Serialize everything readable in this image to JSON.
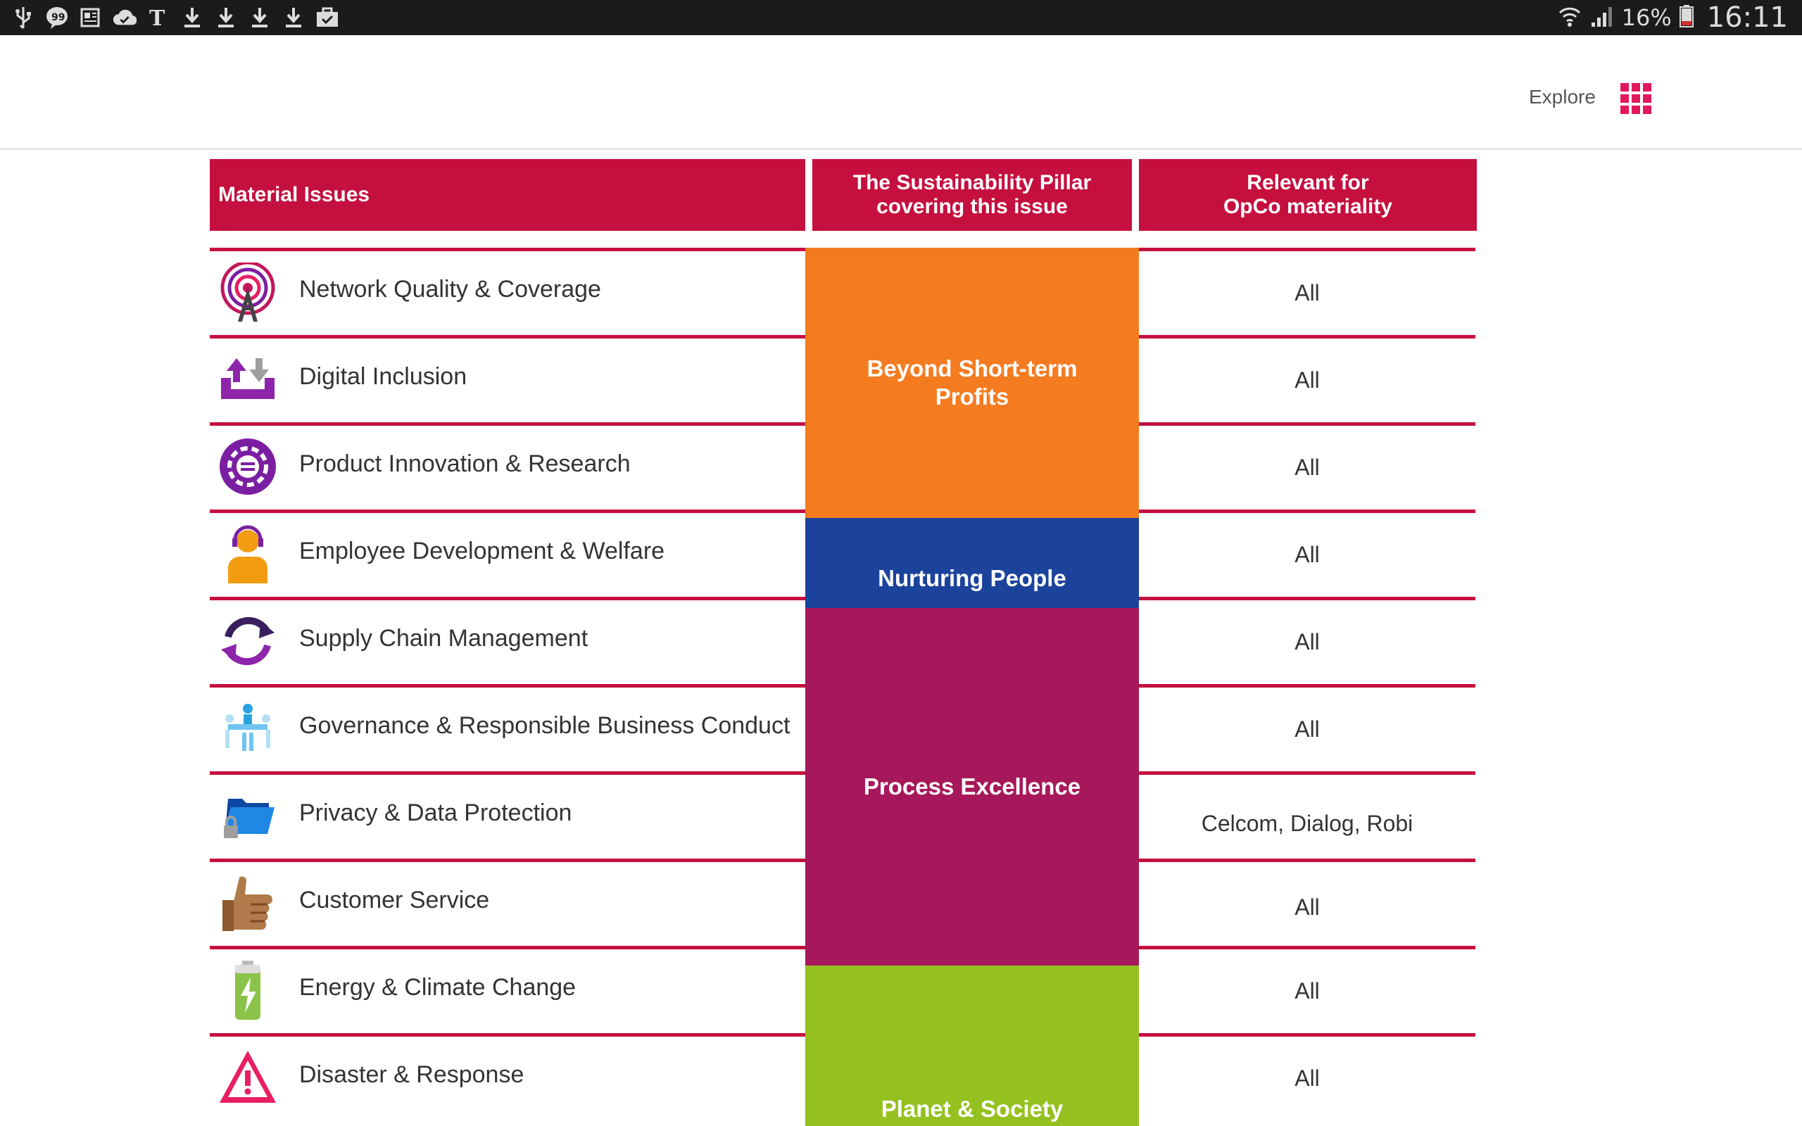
{
  "status_bar": {
    "battery_percent": "16%",
    "time": "16:11",
    "left_icons": [
      "usb-icon",
      "chat-icon",
      "news-icon",
      "cloud-check-icon",
      "nytimes-icon",
      "download-icon",
      "download-icon",
      "download-icon",
      "download-icon",
      "briefcase-check-icon"
    ]
  },
  "header": {
    "explore_label": "Explore"
  },
  "table": {
    "headers": {
      "issues": "Material Issues",
      "pillar": "The Sustainability Pillar\ncovering this issue",
      "relevant": "Relevant for\nOpCo materiality"
    },
    "rows": [
      {
        "label": "Network Quality & Coverage",
        "relevant": "All",
        "icon": "antenna-signal-icon"
      },
      {
        "label": "Digital Inclusion",
        "relevant": "All",
        "icon": "tray-upload-icon"
      },
      {
        "label": "Product Innovation & Research",
        "relevant": "All",
        "icon": "gear-innovation-icon"
      },
      {
        "label": "Employee Development & Welfare",
        "relevant": "All",
        "icon": "employee-headset-icon"
      },
      {
        "label": "Supply Chain Management",
        "relevant": "All",
        "icon": "cycle-arrows-icon"
      },
      {
        "label": "Governance & Responsible Business Conduct",
        "relevant": "All",
        "icon": "boardroom-icon"
      },
      {
        "label": "Privacy & Data Protection",
        "relevant": "Celcom, Dialog, Robi",
        "icon": "locked-folder-icon"
      },
      {
        "label": "Customer Service",
        "relevant": "All",
        "icon": "thumbs-up-icon"
      },
      {
        "label": "Energy & Climate Change",
        "relevant": "All",
        "icon": "battery-charge-icon"
      },
      {
        "label": "Disaster & Response",
        "relevant": "All",
        "icon": "warning-triangle-icon"
      }
    ],
    "pillars": [
      {
        "label": "Beyond Short-term\nProfits",
        "color": "#f47b20"
      },
      {
        "label": "Nurturing People",
        "color": "#1c439b"
      },
      {
        "label": "Process Excellence",
        "color": "#a6185b"
      },
      {
        "label": "Planet & Society",
        "color": "#94c11f"
      }
    ]
  },
  "colors": {
    "accent": "#c50f3e",
    "explore_grid": "#e0185c"
  }
}
